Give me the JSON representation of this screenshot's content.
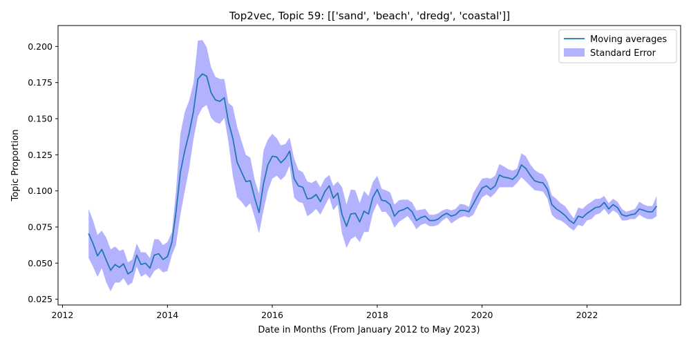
{
  "chart_data": {
    "type": "line",
    "title": "Top2vec, Topic 59: [['sand', 'beach', 'dredg', 'coastal']]",
    "xlabel": "Date in Months (From January 2012 to May 2023)",
    "ylabel": "Topic Proportion",
    "xlim": [
      "2011-12-01",
      "2023-10-15"
    ],
    "ylim": [
      0.021,
      0.2145
    ],
    "x_ticks": [
      {
        "value": "2012-01-01",
        "label": "2012"
      },
      {
        "value": "2014-01-01",
        "label": "2014"
      },
      {
        "value": "2016-01-01",
        "label": "2016"
      },
      {
        "value": "2018-01-01",
        "label": "2018"
      },
      {
        "value": "2020-01-01",
        "label": "2020"
      },
      {
        "value": "2022-01-01",
        "label": "2022"
      }
    ],
    "y_ticks": [
      {
        "value": 0.025,
        "label": "0.025"
      },
      {
        "value": 0.05,
        "label": "0.050"
      },
      {
        "value": 0.075,
        "label": "0.075"
      },
      {
        "value": 0.1,
        "label": "0.100"
      },
      {
        "value": 0.125,
        "label": "0.125"
      },
      {
        "value": 0.15,
        "label": "0.150"
      },
      {
        "value": 0.175,
        "label": "0.175"
      },
      {
        "value": 0.2,
        "label": "0.200"
      }
    ],
    "grid": false,
    "legend_position": "top-right",
    "series": [
      {
        "name": "Moving averages",
        "color": "#1f77b4",
        "x": [
          "2012-07-01",
          "2012-08-01",
          "2012-09-01",
          "2012-10-01",
          "2012-11-01",
          "2012-12-01",
          "2013-01-01",
          "2013-02-01",
          "2013-03-01",
          "2013-04-01",
          "2013-05-01",
          "2013-06-01",
          "2013-07-01",
          "2013-08-01",
          "2013-09-01",
          "2013-10-01",
          "2013-11-01",
          "2013-12-01",
          "2014-01-01",
          "2014-02-01",
          "2014-03-01",
          "2014-04-01",
          "2014-05-01",
          "2014-06-01",
          "2014-07-01",
          "2014-08-01",
          "2014-09-01",
          "2014-10-01",
          "2014-11-01",
          "2014-12-01",
          "2015-01-01",
          "2015-02-01",
          "2015-03-01",
          "2015-04-01",
          "2015-05-01",
          "2015-06-01",
          "2015-07-01",
          "2015-08-01",
          "2015-09-01",
          "2015-10-01",
          "2015-11-01",
          "2015-12-01",
          "2016-01-01",
          "2016-02-01",
          "2016-03-01",
          "2016-04-01",
          "2016-05-01",
          "2016-06-01",
          "2016-07-01",
          "2016-08-01",
          "2016-09-01",
          "2016-10-01",
          "2016-11-01",
          "2016-12-01",
          "2017-01-01",
          "2017-02-01",
          "2017-03-01",
          "2017-04-01",
          "2017-05-01",
          "2017-06-01",
          "2017-07-01",
          "2017-08-01",
          "2017-09-01",
          "2017-10-01",
          "2017-11-01",
          "2017-12-01",
          "2018-01-01",
          "2018-02-01",
          "2018-03-01",
          "2018-04-01",
          "2018-05-01",
          "2018-06-01",
          "2018-07-01",
          "2018-08-01",
          "2018-09-01",
          "2018-10-01",
          "2018-11-01",
          "2018-12-01",
          "2019-01-01",
          "2019-02-01",
          "2019-03-01",
          "2019-04-01",
          "2019-05-01",
          "2019-06-01",
          "2019-07-01",
          "2019-08-01",
          "2019-09-01",
          "2019-10-01",
          "2019-11-01",
          "2019-12-01",
          "2020-01-01",
          "2020-02-01",
          "2020-03-01",
          "2020-04-01",
          "2020-05-01",
          "2020-06-01",
          "2020-07-01",
          "2020-08-01",
          "2020-09-01",
          "2020-10-01",
          "2020-11-01",
          "2020-12-01",
          "2021-01-01",
          "2021-02-01",
          "2021-03-01",
          "2021-04-01",
          "2021-05-01",
          "2021-06-01",
          "2021-07-01",
          "2021-08-01",
          "2021-09-01",
          "2021-10-01",
          "2021-11-01",
          "2021-12-01",
          "2022-01-01",
          "2022-02-01",
          "2022-03-01",
          "2022-04-01",
          "2022-05-01",
          "2022-06-01",
          "2022-07-01",
          "2022-08-01",
          "2022-09-01",
          "2022-10-01",
          "2022-11-01",
          "2022-12-01",
          "2023-01-01",
          "2023-02-01",
          "2023-03-01",
          "2023-04-01",
          "2023-05-01"
        ],
        "y": [
          0.0705,
          0.0635,
          0.055,
          0.0595,
          0.052,
          0.045,
          0.049,
          0.047,
          0.0495,
          0.0425,
          0.0445,
          0.0555,
          0.049,
          0.05,
          0.0465,
          0.0555,
          0.0565,
          0.0525,
          0.0545,
          0.0645,
          0.085,
          0.113,
          0.1275,
          0.14,
          0.155,
          0.1775,
          0.181,
          0.1795,
          0.168,
          0.163,
          0.162,
          0.1645,
          0.148,
          0.1365,
          0.12,
          0.113,
          0.1065,
          0.107,
          0.095,
          0.085,
          0.105,
          0.118,
          0.124,
          0.1235,
          0.1195,
          0.1225,
          0.1275,
          0.1085,
          0.1035,
          0.1025,
          0.0945,
          0.095,
          0.0975,
          0.0925,
          0.0995,
          0.1035,
          0.095,
          0.0985,
          0.0835,
          0.0755,
          0.084,
          0.0845,
          0.0785,
          0.086,
          0.084,
          0.0955,
          0.101,
          0.0935,
          0.093,
          0.0905,
          0.0825,
          0.086,
          0.087,
          0.0885,
          0.0855,
          0.0795,
          0.0815,
          0.0825,
          0.0795,
          0.0795,
          0.0805,
          0.083,
          0.0845,
          0.0825,
          0.0835,
          0.0865,
          0.0865,
          0.0855,
          0.091,
          0.0965,
          0.102,
          0.1035,
          0.101,
          0.1035,
          0.111,
          0.1095,
          0.109,
          0.108,
          0.111,
          0.118,
          0.1155,
          0.111,
          0.107,
          0.106,
          0.1055,
          0.101,
          0.0905,
          0.0875,
          0.0855,
          0.083,
          0.0795,
          0.0775,
          0.0825,
          0.0815,
          0.0845,
          0.0865,
          0.0885,
          0.089,
          0.092,
          0.0875,
          0.0905,
          0.0885,
          0.0835,
          0.0825,
          0.0835,
          0.084,
          0.0875,
          0.0865,
          0.0855,
          0.0855,
          0.0895
        ]
      },
      {
        "name": "Standard Error",
        "color": "#0000ff",
        "upper": [
          0.0875,
          0.0795,
          0.0695,
          0.0725,
          0.0675,
          0.0595,
          0.0615,
          0.0585,
          0.0595,
          0.0505,
          0.0525,
          0.0635,
          0.0575,
          0.0575,
          0.0535,
          0.0665,
          0.0665,
          0.0625,
          0.0645,
          0.0715,
          0.0995,
          0.1395,
          0.1545,
          0.1625,
          0.1745,
          0.204,
          0.2045,
          0.1995,
          0.1855,
          0.179,
          0.1775,
          0.1775,
          0.161,
          0.1585,
          0.1445,
          0.1345,
          0.125,
          0.123,
          0.1075,
          0.098,
          0.128,
          0.1355,
          0.1395,
          0.1365,
          0.1315,
          0.1325,
          0.137,
          0.1225,
          0.1145,
          0.113,
          0.1065,
          0.1055,
          0.1075,
          0.1025,
          0.1085,
          0.111,
          0.1035,
          0.1065,
          0.1025,
          0.0905,
          0.101,
          0.1005,
          0.0915,
          0.1,
          0.0965,
          0.106,
          0.1105,
          0.1015,
          0.1005,
          0.099,
          0.0905,
          0.0935,
          0.094,
          0.094,
          0.092,
          0.0865,
          0.087,
          0.0875,
          0.0835,
          0.0835,
          0.0845,
          0.0865,
          0.0875,
          0.0865,
          0.0875,
          0.091,
          0.0905,
          0.089,
          0.0985,
          0.1035,
          0.1085,
          0.109,
          0.1085,
          0.1105,
          0.1185,
          0.117,
          0.115,
          0.114,
          0.1155,
          0.126,
          0.124,
          0.1185,
          0.1145,
          0.1125,
          0.1115,
          0.1065,
          0.097,
          0.0945,
          0.0915,
          0.0895,
          0.085,
          0.081,
          0.0885,
          0.0875,
          0.0905,
          0.0925,
          0.0945,
          0.0945,
          0.0965,
          0.0915,
          0.0945,
          0.0925,
          0.0875,
          0.0855,
          0.0865,
          0.0875,
          0.0925,
          0.0905,
          0.0895,
          0.0895,
          0.0965
        ],
        "lower": [
          0.0535,
          0.0475,
          0.0405,
          0.0465,
          0.0365,
          0.0305,
          0.0365,
          0.0365,
          0.0395,
          0.0345,
          0.0365,
          0.0475,
          0.0405,
          0.0425,
          0.0395,
          0.0445,
          0.0465,
          0.0435,
          0.0445,
          0.0555,
          0.0625,
          0.0835,
          0.0995,
          0.1155,
          0.1355,
          0.1515,
          0.1575,
          0.1595,
          0.1505,
          0.1475,
          0.1465,
          0.1505,
          0.1345,
          0.1105,
          0.0955,
          0.0925,
          0.0885,
          0.0915,
          0.0815,
          0.0705,
          0.0865,
          0.1,
          0.1085,
          0.1105,
          0.1075,
          0.1105,
          0.1175,
          0.0955,
          0.0925,
          0.0915,
          0.0825,
          0.0845,
          0.0875,
          0.0835,
          0.0895,
          0.0955,
          0.0865,
          0.0905,
          0.0705,
          0.0605,
          0.0665,
          0.0685,
          0.0645,
          0.0715,
          0.0715,
          0.0845,
          0.0915,
          0.0855,
          0.0855,
          0.0815,
          0.0745,
          0.0785,
          0.0805,
          0.0825,
          0.0785,
          0.0735,
          0.0765,
          0.0775,
          0.0755,
          0.0755,
          0.0765,
          0.0795,
          0.0815,
          0.0775,
          0.0795,
          0.0815,
          0.0825,
          0.0815,
          0.0835,
          0.0895,
          0.0955,
          0.0975,
          0.0955,
          0.0985,
          0.1025,
          0.1025,
          0.1025,
          0.1025,
          0.1055,
          0.1095,
          0.1065,
          0.1035,
          0.1005,
          0.1,
          0.0995,
          0.0945,
          0.0835,
          0.0805,
          0.0795,
          0.0775,
          0.0745,
          0.0725,
          0.0765,
          0.0755,
          0.0795,
          0.0805,
          0.0835,
          0.0845,
          0.0875,
          0.0835,
          0.0865,
          0.0845,
          0.0795,
          0.0795,
          0.0805,
          0.0805,
          0.0835,
          0.0815,
          0.0805,
          0.0805,
          0.0825
        ]
      }
    ]
  }
}
